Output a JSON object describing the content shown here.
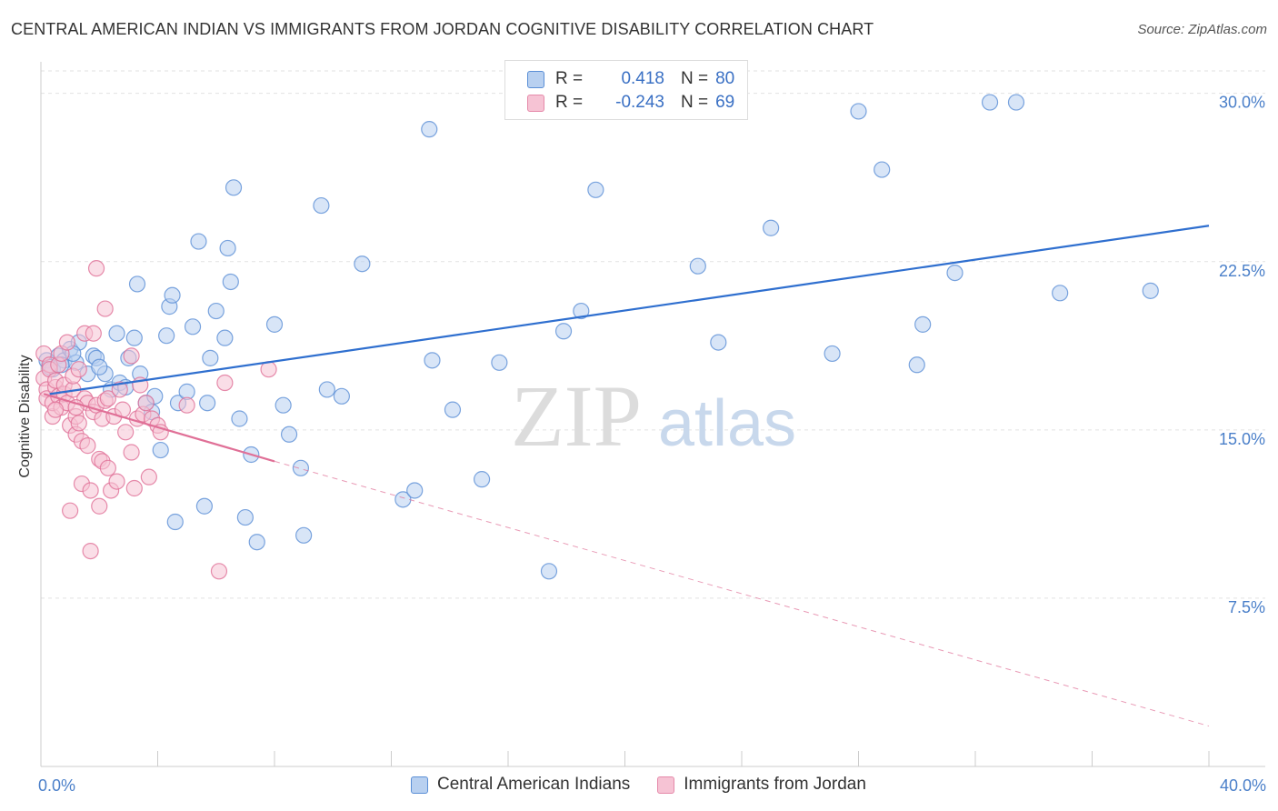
{
  "title": "CENTRAL AMERICAN INDIAN VS IMMIGRANTS FROM JORDAN COGNITIVE DISABILITY CORRELATION CHART",
  "source": "Source: ZipAtlas.com",
  "watermark": {
    "zip": "ZIP",
    "atlas": "atlas"
  },
  "legend": [
    {
      "r_label": "R =",
      "r_value": "0.418",
      "n_label": "N =",
      "n_value": "80",
      "fill": "#b8d0f0",
      "stroke": "#5b8fd6"
    },
    {
      "r_label": "R =",
      "r_value": "-0.243",
      "n_label": "N =",
      "n_value": "69",
      "fill": "#f6c3d4",
      "stroke": "#e58aaa"
    }
  ],
  "chart_data": {
    "type": "scatter",
    "title": "CENTRAL AMERICAN INDIAN VS IMMIGRANTS FROM JORDAN COGNITIVE DISABILITY CORRELATION CHART",
    "xlabel": "",
    "ylabel": "Cognitive Disability",
    "xlim": [
      0,
      40
    ],
    "ylim": [
      0,
      31
    ],
    "x_tick_labels": [
      "0.0%",
      "40.0%"
    ],
    "y_ticks": [
      7.5,
      15.0,
      22.5,
      30.0
    ],
    "y_tick_labels": [
      "7.5%",
      "15.0%",
      "22.5%",
      "30.0%"
    ],
    "grid": "horizontal dashed",
    "series": [
      {
        "name": "Central American Indians",
        "color": "#5b8fd6",
        "fill": "#b8d0f0",
        "trend": {
          "x": [
            0.3,
            40.0
          ],
          "y": [
            16.6,
            24.1
          ],
          "style": "solid"
        },
        "points": [
          [
            0.2,
            18.1
          ],
          [
            0.4,
            17.7
          ],
          [
            0.6,
            18.3
          ],
          [
            0.8,
            18.1
          ],
          [
            1.0,
            18.6
          ],
          [
            1.2,
            18.0
          ],
          [
            1.3,
            18.9
          ],
          [
            1.6,
            17.5
          ],
          [
            1.8,
            18.3
          ],
          [
            1.9,
            18.2
          ],
          [
            2.2,
            17.5
          ],
          [
            2.4,
            16.8
          ],
          [
            2.6,
            19.3
          ],
          [
            2.7,
            17.1
          ],
          [
            2.9,
            16.9
          ],
          [
            3.0,
            18.2
          ],
          [
            3.2,
            19.1
          ],
          [
            3.3,
            21.5
          ],
          [
            3.4,
            17.5
          ],
          [
            3.6,
            16.2
          ],
          [
            3.8,
            15.8
          ],
          [
            3.9,
            16.5
          ],
          [
            4.1,
            14.1
          ],
          [
            4.3,
            19.2
          ],
          [
            4.4,
            20.5
          ],
          [
            4.5,
            21.0
          ],
          [
            4.6,
            10.9
          ],
          [
            4.7,
            16.2
          ],
          [
            5.0,
            16.7
          ],
          [
            5.2,
            19.6
          ],
          [
            5.4,
            23.4
          ],
          [
            5.6,
            11.6
          ],
          [
            5.7,
            16.2
          ],
          [
            5.8,
            18.2
          ],
          [
            6.0,
            20.3
          ],
          [
            6.3,
            19.1
          ],
          [
            6.4,
            23.1
          ],
          [
            6.5,
            21.6
          ],
          [
            6.6,
            25.8
          ],
          [
            6.8,
            15.5
          ],
          [
            7.0,
            11.1
          ],
          [
            7.2,
            13.9
          ],
          [
            7.4,
            10.0
          ],
          [
            8.0,
            19.7
          ],
          [
            8.3,
            16.1
          ],
          [
            8.5,
            14.8
          ],
          [
            8.9,
            13.3
          ],
          [
            9.0,
            10.3
          ],
          [
            9.6,
            25.0
          ],
          [
            9.8,
            16.8
          ],
          [
            10.3,
            16.5
          ],
          [
            11.0,
            22.4
          ],
          [
            12.4,
            11.9
          ],
          [
            12.8,
            12.3
          ],
          [
            13.3,
            28.4
          ],
          [
            13.4,
            18.1
          ],
          [
            14.1,
            15.9
          ],
          [
            15.1,
            12.8
          ],
          [
            15.7,
            18.0
          ],
          [
            17.4,
            8.7
          ],
          [
            17.9,
            19.4
          ],
          [
            18.5,
            20.3
          ],
          [
            19.0,
            25.7
          ],
          [
            22.5,
            22.3
          ],
          [
            23.2,
            18.9
          ],
          [
            25.0,
            24.0
          ],
          [
            27.1,
            18.4
          ],
          [
            28.0,
            29.2
          ],
          [
            28.8,
            26.6
          ],
          [
            30.0,
            17.9
          ],
          [
            30.2,
            19.7
          ],
          [
            31.3,
            22.0
          ],
          [
            32.5,
            29.6
          ],
          [
            33.4,
            29.6
          ],
          [
            34.9,
            21.1
          ],
          [
            38.0,
            21.2
          ],
          [
            0.3,
            17.8
          ],
          [
            1.1,
            18.4
          ],
          [
            0.7,
            17.9
          ],
          [
            2.0,
            17.8
          ]
        ]
      },
      {
        "name": "Immigrants from Jordan",
        "color": "#e07097",
        "fill": "#f6c3d4",
        "trend": {
          "x": [
            0.1,
            8.0
          ],
          "y": [
            16.6,
            13.6
          ],
          "style": "solid",
          "extended": {
            "x": [
              8.0,
              40.0
            ],
            "y": [
              13.6,
              1.8
            ],
            "style": "dashed"
          }
        },
        "points": [
          [
            0.1,
            18.4
          ],
          [
            0.1,
            17.3
          ],
          [
            0.2,
            16.8
          ],
          [
            0.2,
            16.4
          ],
          [
            0.3,
            17.9
          ],
          [
            0.3,
            17.7
          ],
          [
            0.4,
            15.6
          ],
          [
            0.4,
            16.2
          ],
          [
            0.5,
            16.9
          ],
          [
            0.5,
            17.2
          ],
          [
            0.6,
            17.9
          ],
          [
            0.6,
            16.5
          ],
          [
            0.7,
            18.4
          ],
          [
            0.7,
            16.0
          ],
          [
            0.8,
            16.6
          ],
          [
            0.8,
            17.0
          ],
          [
            0.9,
            18.9
          ],
          [
            0.9,
            16.2
          ],
          [
            1.0,
            15.2
          ],
          [
            1.0,
            11.4
          ],
          [
            1.1,
            16.8
          ],
          [
            1.1,
            17.4
          ],
          [
            1.2,
            15.6
          ],
          [
            1.2,
            14.8
          ],
          [
            1.3,
            17.7
          ],
          [
            1.3,
            15.3
          ],
          [
            1.4,
            12.6
          ],
          [
            1.4,
            14.5
          ],
          [
            1.5,
            16.4
          ],
          [
            1.5,
            19.3
          ],
          [
            1.6,
            14.3
          ],
          [
            1.6,
            16.2
          ],
          [
            1.7,
            12.3
          ],
          [
            1.7,
            9.6
          ],
          [
            1.8,
            15.8
          ],
          [
            1.8,
            19.3
          ],
          [
            1.9,
            22.2
          ],
          [
            1.9,
            16.1
          ],
          [
            2.0,
            13.7
          ],
          [
            2.0,
            11.6
          ],
          [
            2.1,
            13.6
          ],
          [
            2.1,
            15.5
          ],
          [
            2.2,
            20.4
          ],
          [
            2.2,
            16.3
          ],
          [
            2.3,
            13.3
          ],
          [
            2.3,
            16.4
          ],
          [
            2.4,
            12.3
          ],
          [
            2.5,
            15.6
          ],
          [
            2.6,
            12.7
          ],
          [
            2.7,
            16.8
          ],
          [
            2.8,
            15.9
          ],
          [
            2.9,
            14.9
          ],
          [
            3.1,
            14.0
          ],
          [
            3.1,
            18.3
          ],
          [
            3.2,
            12.4
          ],
          [
            3.3,
            15.5
          ],
          [
            3.4,
            17.0
          ],
          [
            3.5,
            15.7
          ],
          [
            3.6,
            16.2
          ],
          [
            3.7,
            12.9
          ],
          [
            3.8,
            15.5
          ],
          [
            4.0,
            15.2
          ],
          [
            4.1,
            14.9
          ],
          [
            5.0,
            16.1
          ],
          [
            6.1,
            8.7
          ],
          [
            6.3,
            17.1
          ],
          [
            7.8,
            17.7
          ],
          [
            0.5,
            15.9
          ],
          [
            1.2,
            16.0
          ]
        ]
      }
    ]
  }
}
